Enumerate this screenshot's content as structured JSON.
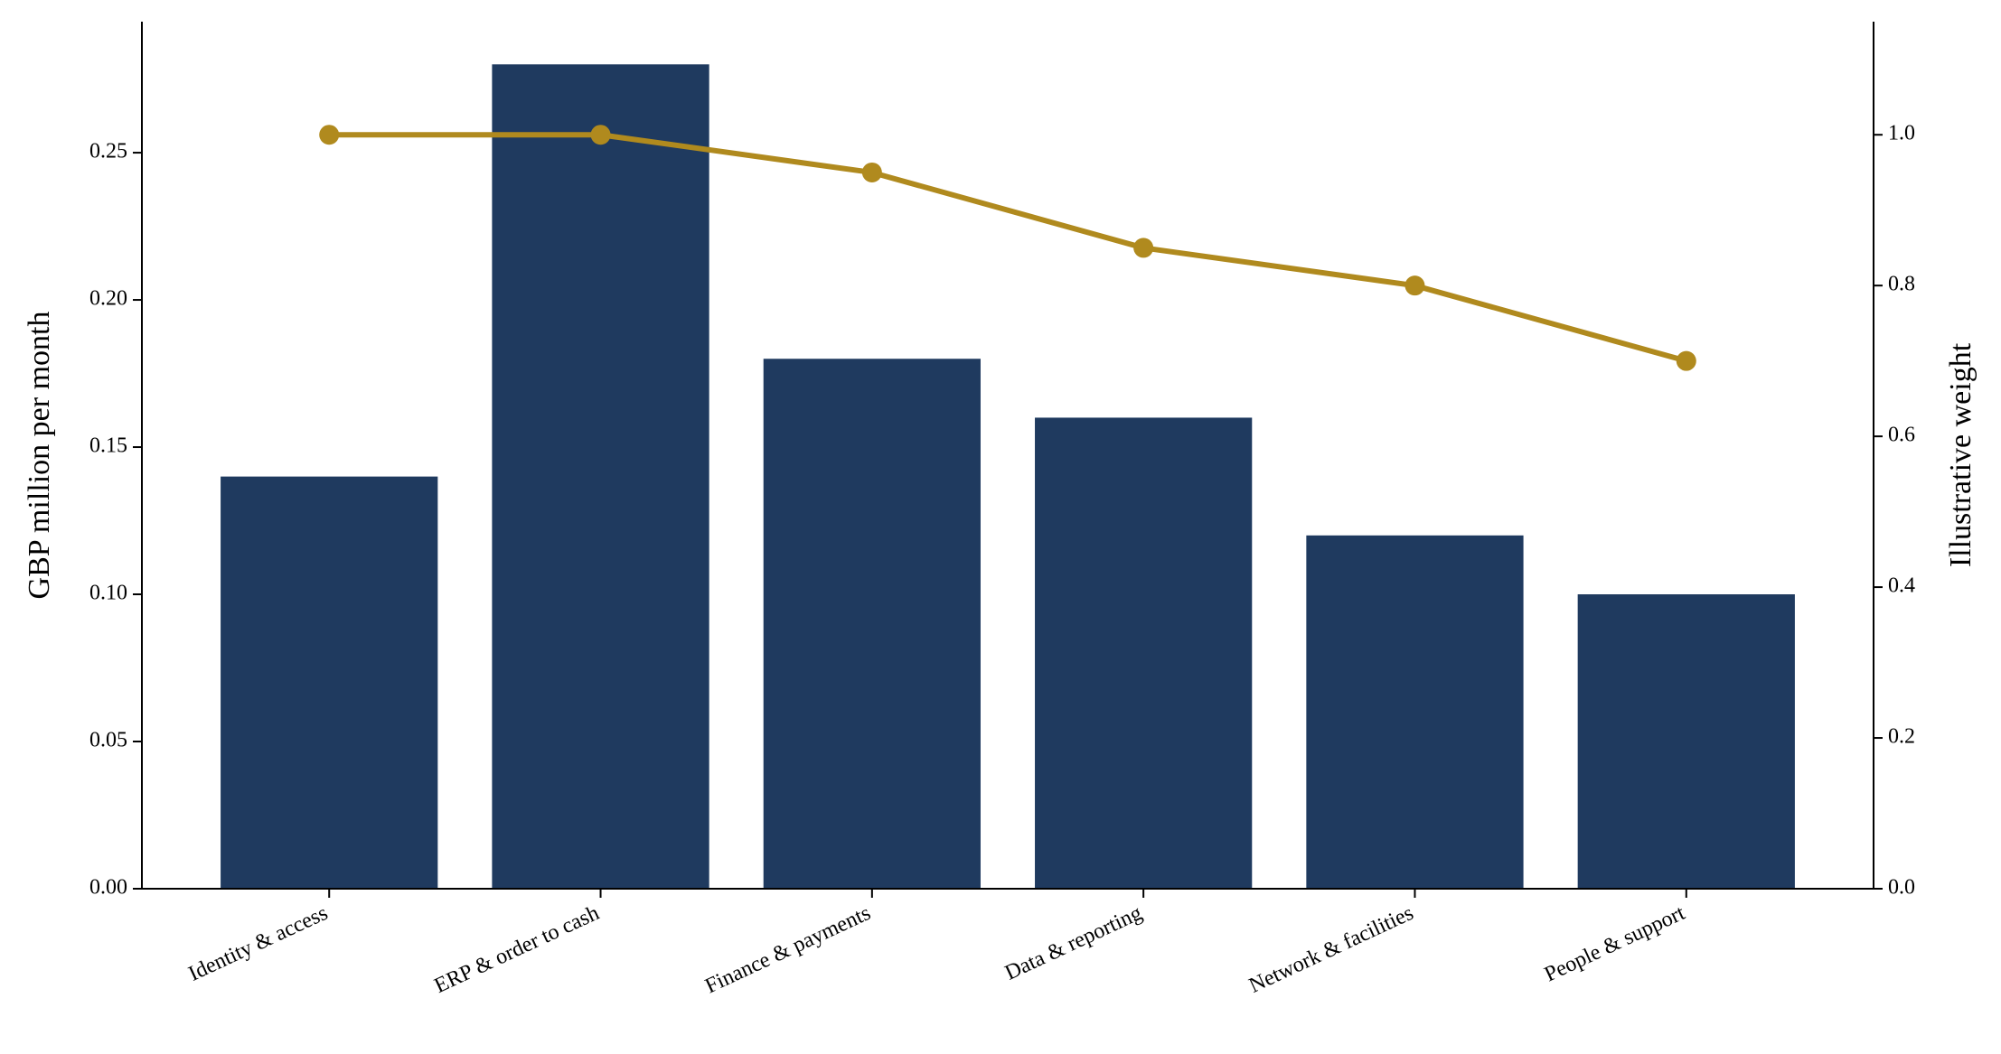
{
  "chart_data": {
    "type": "bar",
    "ylabel": "GBP million per month",
    "y2label": "Illustrative weight",
    "categories": [
      "Identity & access",
      "ERP & order to cash",
      "Finance & payments",
      "Data & reporting",
      "Network & facilities",
      "People & support"
    ],
    "series": [
      {
        "type": "bar",
        "color": "#1f3a5f",
        "values": [
          0.14,
          0.28,
          0.18,
          0.16,
          0.12,
          0.1
        ]
      },
      {
        "type": "line",
        "axis": "y2",
        "color": "#b08a1e",
        "values": [
          1.0,
          1.0,
          0.95,
          0.85,
          0.8,
          0.7
        ]
      }
    ],
    "ylim": [
      0,
      0.2945
    ],
    "yticks": [
      {
        "value": 0,
        "label": "0.00"
      },
      {
        "value": 0.05,
        "label": "0.05"
      },
      {
        "value": 0.1,
        "label": "0.10"
      },
      {
        "value": 0.15,
        "label": "0.15"
      },
      {
        "value": 0.2,
        "label": "0.20"
      },
      {
        "value": 0.25,
        "label": "0.25"
      }
    ],
    "y2lim": [
      0,
      1.15
    ],
    "y2ticks": [
      {
        "value": 0,
        "label": "0.0"
      },
      {
        "value": 0.2,
        "label": "0.2"
      },
      {
        "value": 0.4,
        "label": "0.4"
      },
      {
        "value": 0.6,
        "label": "0.6"
      },
      {
        "value": 0.8,
        "label": "0.8"
      },
      {
        "value": 1.0,
        "label": "1.0"
      }
    ],
    "grid": false
  }
}
